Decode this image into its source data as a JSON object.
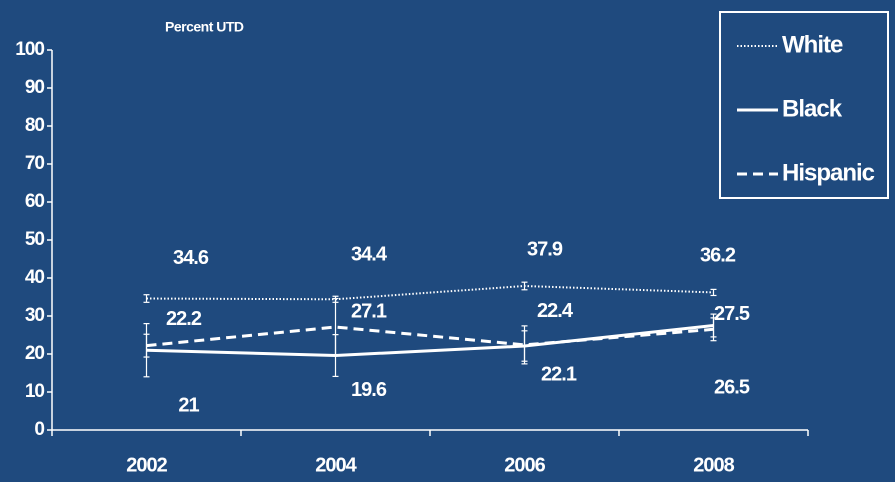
{
  "chart_data": {
    "type": "line",
    "ylabel": "Percent UTD",
    "categories": [
      "2002",
      "2004",
      "2006",
      "2008"
    ],
    "ylim": [
      0,
      100
    ],
    "yticks": [
      0,
      10,
      20,
      30,
      40,
      50,
      60,
      70,
      80,
      90,
      100
    ],
    "legend": "upper right",
    "series": [
      {
        "name": "White",
        "color": "#ffffff",
        "style": "dotted",
        "values": [
          34.6,
          34.4,
          37.9,
          36.2
        ],
        "errors": [
          1,
          0.8,
          1,
          0.8
        ]
      },
      {
        "name": "Black",
        "color": "#ffffff",
        "style": "solid",
        "values": [
          21.0,
          19.6,
          22.1,
          27.5
        ],
        "errors": [
          7,
          5.5,
          4,
          3
        ]
      },
      {
        "name": "Hispanic",
        "color": "#ffffff",
        "style": "dashed",
        "values": [
          22.2,
          27.1,
          22.4,
          26.5
        ],
        "errors": [
          3,
          7.5,
          5,
          3
        ]
      }
    ]
  }
}
